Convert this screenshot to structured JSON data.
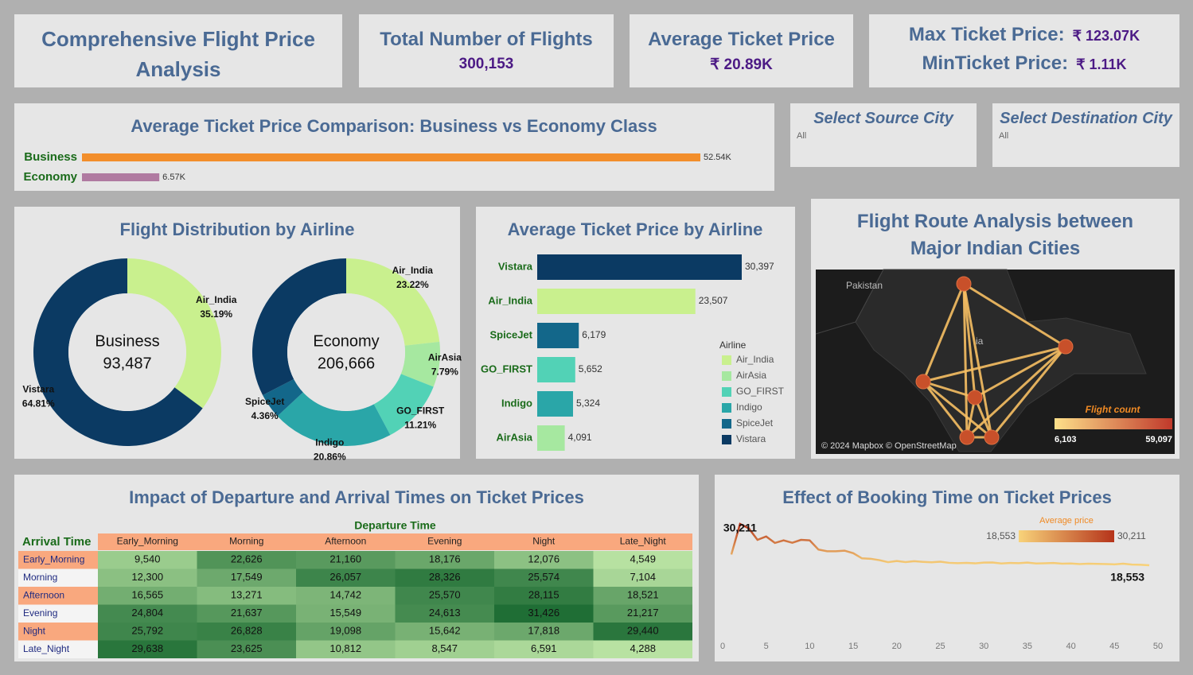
{
  "title": "Comprehensive Flight Price Analysis",
  "kpis": [
    {
      "label": "Total Number of Flights",
      "value": "300,153"
    },
    {
      "label": "Average Ticket Price",
      "value": "₹ 20.89K"
    },
    {
      "label": "Max Ticket Price:",
      "value": "₹ 123.07K"
    },
    {
      "label": "MinTicket Price:",
      "value": "₹ 1.11K"
    }
  ],
  "filters": [
    {
      "label": "Select Source City",
      "value": "All"
    },
    {
      "label": "Select Destination City",
      "value": "All"
    }
  ],
  "chart_data": [
    {
      "type": "hbar",
      "title": "Average Ticket Price Comparison: Business vs Economy Class",
      "categories": [
        "Business",
        "Economy"
      ],
      "values": [
        52540,
        6570
      ],
      "value_labels": [
        "52.54K",
        "6.57K"
      ],
      "colors": [
        "#f28e2b",
        "#b07aa1"
      ]
    },
    {
      "type": "donut",
      "title": "Flight Distribution by Airline",
      "series": [
        {
          "name": "Business",
          "total": "93,487",
          "categories": [
            "Air_India",
            "Vistara"
          ],
          "values": [
            35.19,
            64.81
          ],
          "value_labels": [
            "35.19%",
            "64.81%"
          ],
          "colors": [
            "#c9f08e",
            "#0b3a63"
          ]
        },
        {
          "name": "Economy",
          "total": "206,666",
          "categories": [
            "Air_India",
            "AirAsia",
            "GO_FIRST",
            "Indigo",
            "SpiceJet",
            null
          ],
          "values": [
            23.22,
            7.79,
            11.21,
            20.86,
            4.36,
            32.56
          ],
          "value_labels": [
            "23.22%",
            "7.79%",
            "11.21%",
            "20.86%",
            "4.36%",
            null
          ],
          "colors": [
            "#c9f08e",
            "#a6e8a0",
            "#52d2b6",
            "#2aa6a8",
            "#13678a",
            "#0b3a63"
          ]
        }
      ]
    },
    {
      "type": "hbar",
      "title": "Average Ticket Price by Airline",
      "categories": [
        "Vistara",
        "Air_India",
        "SpiceJet",
        "GO_FIRST",
        "Indigo",
        "AirAsia"
      ],
      "values": [
        30397,
        23507,
        6179,
        5652,
        5324,
        4091
      ],
      "value_labels": [
        "30,397",
        "23,507",
        "6,179",
        "5,652",
        "5,324",
        "4,091"
      ],
      "colors": [
        "#0b3a63",
        "#c9f08e",
        "#13678a",
        "#52d2b6",
        "#2aa6a8",
        "#a6e8a0"
      ],
      "legend": {
        "title": "Airline",
        "items": [
          "Air_India",
          "AirAsia",
          "GO_FIRST",
          "Indigo",
          "SpiceJet",
          "Vistara"
        ],
        "colors": [
          "#c9f08e",
          "#a6e8a0",
          "#52d2b6",
          "#2aa6a8",
          "#13678a",
          "#0b3a63"
        ]
      }
    },
    {
      "type": "map",
      "title": "Flight Route Analysis between Major Indian Cities",
      "labels": [
        "Pakistan",
        "ia"
      ],
      "credit": "© 2024 Mapbox © OpenStreetMap",
      "legend": {
        "title": "Flight count",
        "min": {
          "value": 6103,
          "label": "6,103"
        },
        "max": {
          "value": 59097,
          "label": "59,097"
        },
        "colors": [
          "#fde08a",
          "#c0392b"
        ]
      }
    },
    {
      "type": "heatmap",
      "title": "Impact of Departure and Arrival Times on Ticket Prices",
      "x_label": "Departure Time",
      "y_label": "Arrival Time",
      "columns": [
        "Early_Morning",
        "Morning",
        "Afternoon",
        "Evening",
        "Night",
        "Late_Night"
      ],
      "rows": [
        "Early_Morning",
        "Morning",
        "Afternoon",
        "Evening",
        "Night",
        "Late_Night"
      ],
      "values": [
        [
          9540,
          22626,
          21160,
          18176,
          12076,
          4549
        ],
        [
          12300,
          17549,
          26057,
          28326,
          25574,
          7104
        ],
        [
          16565,
          13271,
          14742,
          25570,
          28115,
          18521
        ],
        [
          24804,
          21637,
          15549,
          24613,
          31426,
          21217
        ],
        [
          25792,
          26828,
          19098,
          15642,
          17818,
          29440
        ],
        [
          29638,
          23625,
          10812,
          8547,
          6591,
          4288
        ]
      ],
      "value_labels": [
        [
          "9,540",
          "22,626",
          "21,160",
          "18,176",
          "12,076",
          "4,549"
        ],
        [
          "12,300",
          "17,549",
          "26,057",
          "28,326",
          "25,574",
          "7,104"
        ],
        [
          "16,565",
          "13,271",
          "14,742",
          "25,570",
          "28,115",
          "18,521"
        ],
        [
          "24,804",
          "21,637",
          "15,549",
          "24,613",
          "31,426",
          "21,217"
        ],
        [
          "25,792",
          "26,828",
          "19,098",
          "15,642",
          "17,818",
          "29,440"
        ],
        [
          "29,638",
          "23,625",
          "10,812",
          "8,547",
          "6,591",
          "4,288"
        ]
      ],
      "colors": [
        "#b8e2a2",
        "#1f6e35"
      ]
    },
    {
      "type": "line",
      "title": "Effect of Booking Time on Ticket Prices",
      "x": [
        1,
        2,
        3,
        4,
        5,
        6,
        7,
        8,
        9,
        10,
        11,
        12,
        13,
        14,
        15,
        16,
        17,
        18,
        19,
        20,
        21,
        22,
        23,
        24,
        25,
        26,
        27,
        28,
        29,
        30,
        31,
        32,
        33,
        34,
        35,
        36,
        37,
        38,
        39,
        40,
        41,
        42,
        43,
        44,
        45,
        46,
        47,
        48,
        49
      ],
      "values": [
        21591,
        30211,
        28976,
        25730,
        26680,
        24856,
        25589,
        24895,
        25726,
        25573,
        22990,
        22505,
        22498,
        22678,
        21952,
        20503,
        20386,
        19993,
        19420,
        19745,
        19462,
        19700,
        19519,
        19385,
        19570,
        19239,
        19144,
        19236,
        19100,
        19309,
        19330,
        19060,
        19200,
        19150,
        19300,
        19050,
        19100,
        19200,
        19000,
        19050,
        18900,
        19000,
        18950,
        18900,
        18800,
        19000,
        18750,
        18700,
        18553
      ],
      "value_labels": [
        null,
        "30,211",
        null,
        null,
        null,
        null,
        null,
        null,
        null,
        null,
        null,
        null,
        null,
        null,
        null,
        null,
        null,
        null,
        null,
        null,
        null,
        null,
        null,
        null,
        null,
        null,
        null,
        null,
        null,
        null,
        null,
        null,
        null,
        null,
        null,
        null,
        null,
        null,
        null,
        null,
        null,
        null,
        null,
        null,
        null,
        null,
        null,
        null,
        "18,553"
      ],
      "xlim": [
        0,
        50
      ],
      "xticks": [
        0,
        5,
        10,
        15,
        20,
        25,
        30,
        35,
        40,
        45,
        50
      ],
      "legend": {
        "title": "Average price",
        "min": {
          "value": 18553,
          "label": "18,553"
        },
        "max": {
          "value": 30211,
          "label": "30,211"
        },
        "colors": [
          "#f8d37a",
          "#b5331a"
        ]
      }
    }
  ]
}
